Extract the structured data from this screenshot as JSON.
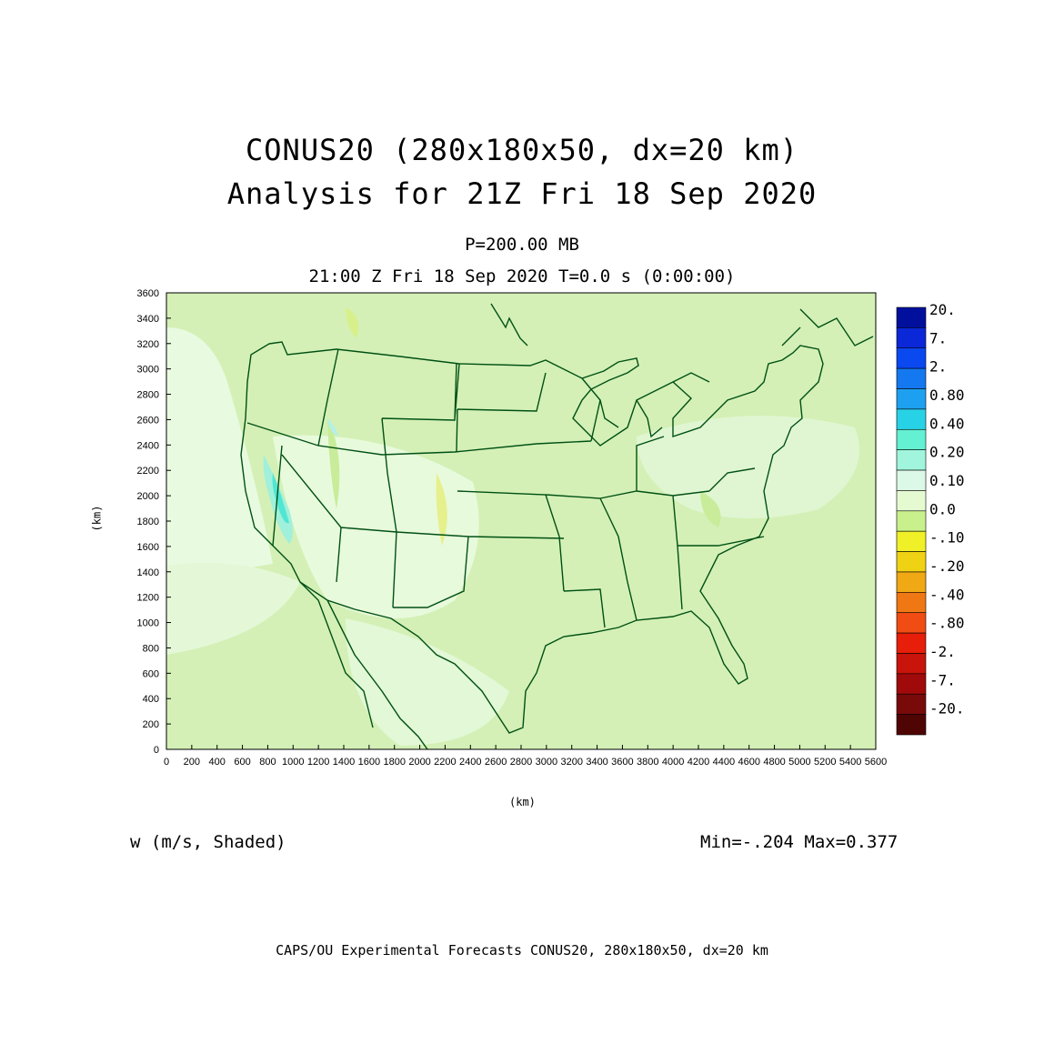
{
  "header": {
    "title_line1": "CONUS20 (280x180x50, dx=20 km)",
    "title_line2": "Analysis for 21Z Fri 18 Sep 2020",
    "level": "P=200.00 MB",
    "time": "21:00 Z Fri 18 Sep 2020    T=0.0 s (0:00:00)"
  },
  "axes": {
    "x_unit": "(km)",
    "y_unit": "(km)",
    "x_ticks": [
      "0",
      "200",
      "400",
      "600",
      "800",
      "1000",
      "1200",
      "1400",
      "1600",
      "1800",
      "2000",
      "2200",
      "2400",
      "2600",
      "2800",
      "3000",
      "3200",
      "3400",
      "3600",
      "3800",
      "4000",
      "4200",
      "4400",
      "4600",
      "4800",
      "5000",
      "5200",
      "5400",
      "5600"
    ],
    "y_ticks": [
      "0",
      "200",
      "400",
      "600",
      "800",
      "1000",
      "1200",
      "1400",
      "1600",
      "1800",
      "2000",
      "2200",
      "2400",
      "2600",
      "2800",
      "3000",
      "3200",
      "3400",
      "3600"
    ],
    "x_range_km": [
      0,
      5600
    ],
    "y_range_km": [
      0,
      3600
    ]
  },
  "colorbar": {
    "labels": [
      "20.",
      "7.",
      "2.",
      "0.80",
      "0.40",
      "0.20",
      "0.10",
      "0.0",
      "-.10",
      "-.20",
      "-.40",
      "-.80",
      "-2.",
      "-7.",
      "-20."
    ],
    "colors": [
      "#00109c",
      "#0a28d8",
      "#0a48f0",
      "#1478f0",
      "#1ea0f0",
      "#28d2e6",
      "#64f0d2",
      "#a0f5dc",
      "#dcf8e6",
      "#e6fad2",
      "#c8f08c",
      "#f0f028",
      "#f0d214",
      "#f0a814",
      "#f07814",
      "#f04c14",
      "#e61e0a",
      "#c8140a",
      "#a00a0a",
      "#780a0a",
      "#500505"
    ]
  },
  "field": {
    "variable_label": "w (m/s, Shaded)",
    "min_max": "Min=-.204  Max=0.377",
    "background_color": "#d2f0b4",
    "coast_color": "#005014"
  },
  "footer": "CAPS/OU Experimental Forecasts  CONUS20, 280x180x50, dx=20 km"
}
